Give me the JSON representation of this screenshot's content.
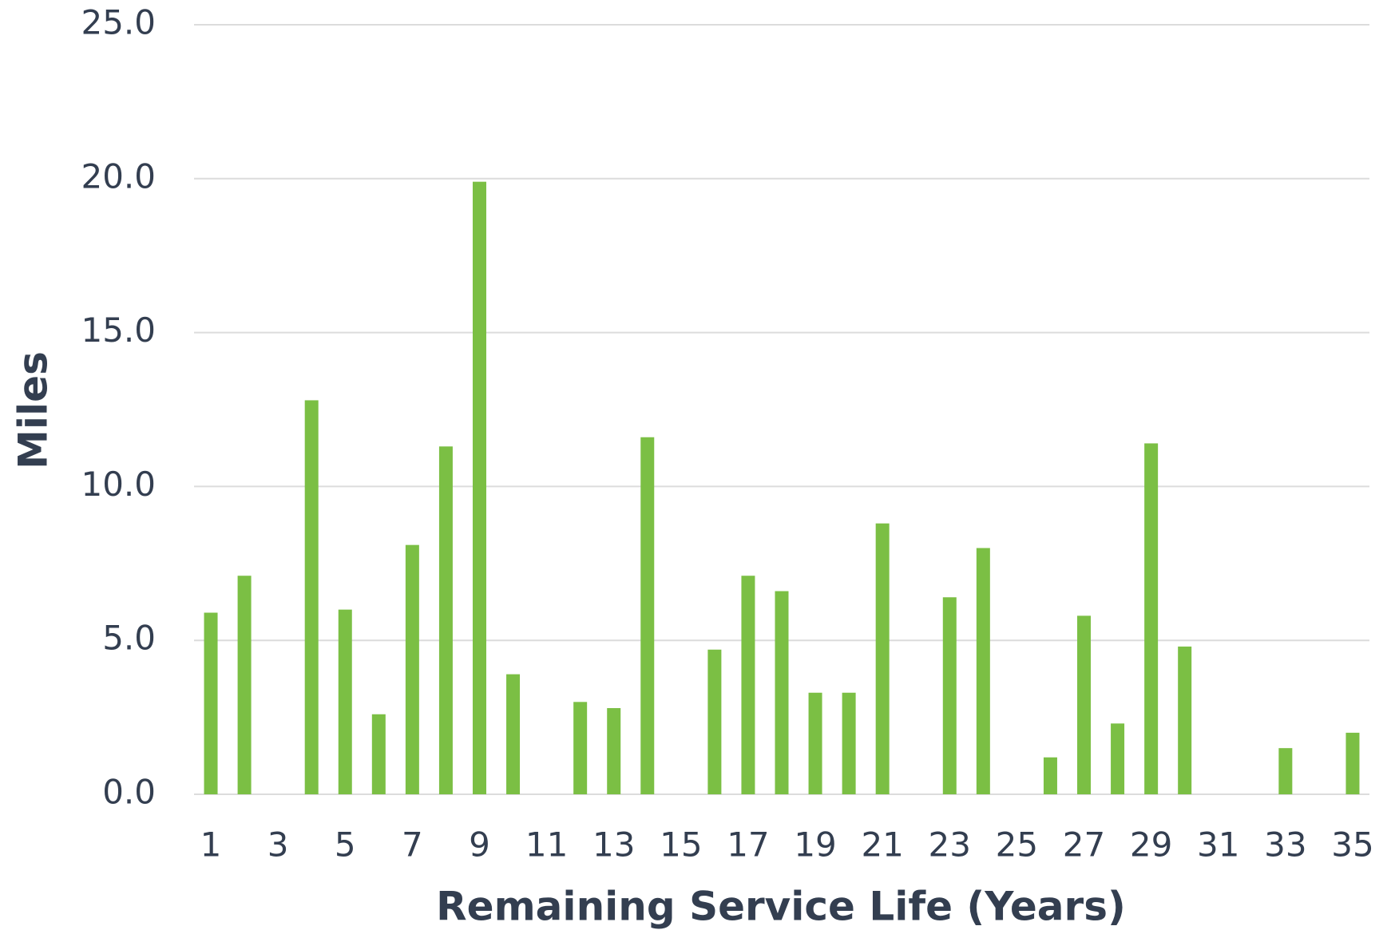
{
  "chart_data": {
    "type": "bar",
    "x_label": "Remaining Service Life (Years)",
    "y_label": "Miles",
    "categories": [
      "1",
      null,
      "3",
      null,
      "5",
      null,
      "7",
      null,
      "9",
      null,
      "11",
      null,
      "13",
      null,
      "15",
      null,
      "17",
      null,
      "19",
      null,
      "21",
      null,
      "23",
      null,
      "25",
      null,
      "27",
      null,
      "29",
      null,
      "31",
      null,
      "33",
      null,
      "35"
    ],
    "values": [
      5.9,
      7.1,
      0,
      12.8,
      6.0,
      2.6,
      8.1,
      11.3,
      19.9,
      3.9,
      0,
      3.0,
      2.8,
      11.6,
      0,
      4.7,
      7.1,
      6.6,
      3.3,
      3.3,
      8.8,
      0,
      6.4,
      8.0,
      0,
      1.2,
      5.8,
      2.3,
      11.4,
      4.8,
      0,
      0,
      1.5,
      0,
      2.0
    ],
    "color": "#7bbf44",
    "ylim": [
      0,
      25
    ],
    "yticks": [
      {
        "value": 0,
        "label": "0.0"
      },
      {
        "value": 5,
        "label": "5.0"
      },
      {
        "value": 10,
        "label": "10.0"
      },
      {
        "value": 15,
        "label": "15.0"
      },
      {
        "value": 20,
        "label": "20.0"
      },
      {
        "value": 25,
        "label": "25.0"
      }
    ],
    "grid": true
  }
}
